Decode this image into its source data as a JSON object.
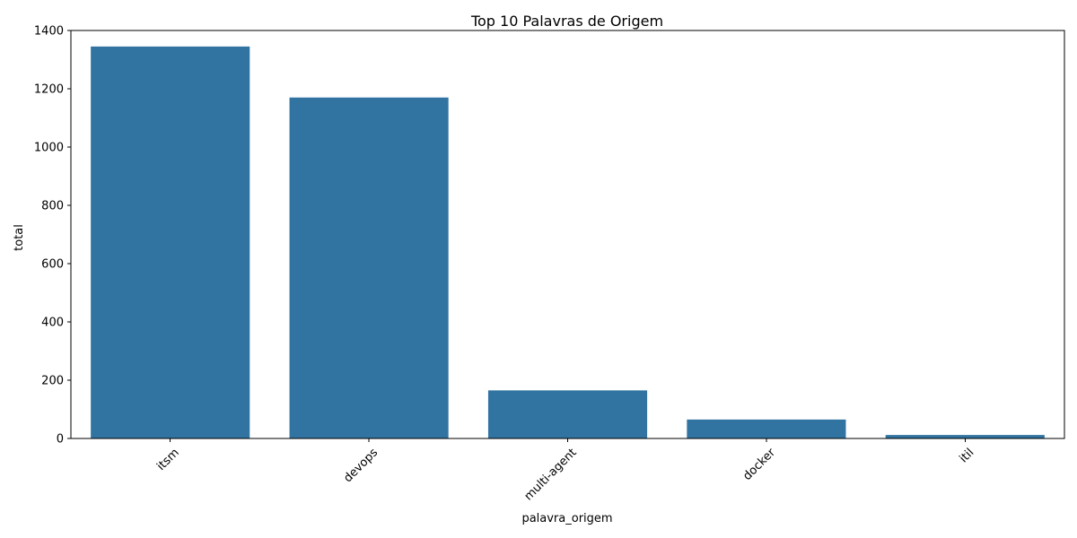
{
  "chart_data": {
    "type": "bar",
    "title": "Top 10 Palavras de Origem",
    "xlabel": "palavra_origem",
    "ylabel": "total",
    "categories": [
      "itsm",
      "devops",
      "multi-agent",
      "docker",
      "itil"
    ],
    "values": [
      1345,
      1170,
      165,
      65,
      12
    ],
    "ylim": [
      0,
      1400
    ],
    "yticks": [
      0,
      200,
      400,
      600,
      800,
      1000,
      1200,
      1400
    ],
    "bar_color": "#3274a1",
    "grid": false,
    "legend": "none",
    "xtick_rotation_deg": 45
  }
}
